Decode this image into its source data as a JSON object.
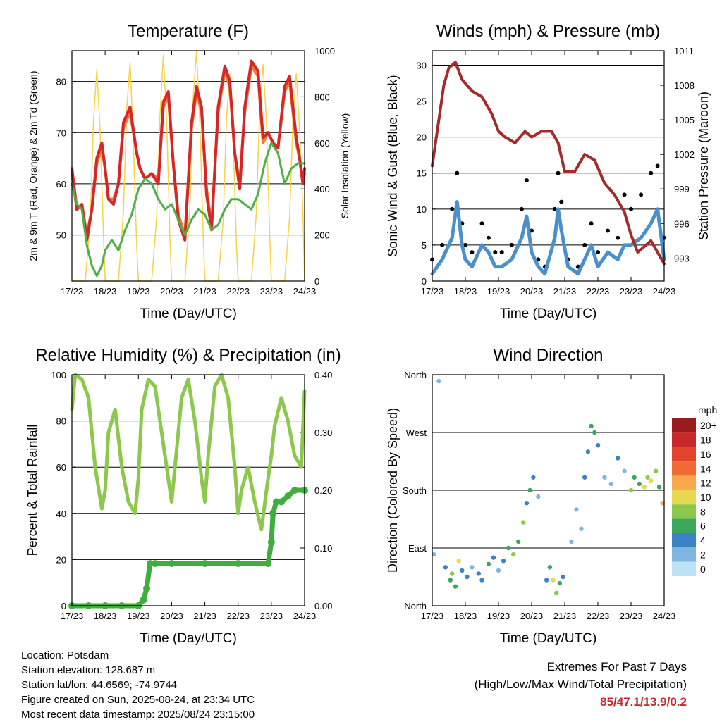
{
  "footer": {
    "location": "Location: Potsdam",
    "elevation": "Station elevation: 128.687 m",
    "latlon": "Station lat/lon: 44.6569; -74.9744",
    "created": "Figure created on Sun, 2025-08-24, at 23:34 UTC",
    "recent": "Most recent data timestamp: 2025/08/24 23:15:00"
  },
  "extremes": {
    "title": "Extremes For Past 7 Days",
    "subtitle": "(High/Low/Max Wind/Total Precipitation)",
    "values": "85/47.1/13.9/0.2",
    "color": "#c0282a"
  },
  "chart_data": [
    {
      "id": "temperature",
      "type": "line",
      "title": "Temperature (F)",
      "xlabel": "Time (Day/UTC)",
      "ylabel": "2m & 9m T (Red, Orange) & 2m Td (Green)",
      "y2label": "Solar Insolation (Yellow)",
      "x_ticks": [
        "17/23",
        "18/23",
        "19/23",
        "20/23",
        "21/23",
        "22/23",
        "23/23",
        "24/23"
      ],
      "xlim": [
        0,
        7
      ],
      "ylim": [
        41,
        86
      ],
      "y_ticks": [
        50,
        60,
        70,
        80
      ],
      "y2lim": [
        0,
        1000
      ],
      "y2_ticks": [
        0,
        200,
        400,
        600,
        800,
        1000
      ],
      "series": [
        {
          "name": "2m T",
          "color": "#d7262a",
          "x": [
            0,
            0.15,
            0.3,
            0.45,
            0.6,
            0.75,
            0.9,
            1.0,
            1.1,
            1.25,
            1.4,
            1.55,
            1.75,
            1.95,
            2.05,
            2.2,
            2.4,
            2.6,
            2.75,
            2.9,
            3.05,
            3.2,
            3.4,
            3.6,
            3.75,
            3.9,
            4.05,
            4.2,
            4.4,
            4.6,
            4.75,
            4.9,
            5.05,
            5.2,
            5.4,
            5.6,
            5.75,
            5.9,
            6.05,
            6.2,
            6.4,
            6.55,
            6.65,
            6.75,
            6.85,
            6.95,
            7.0
          ],
          "values": [
            63,
            55,
            56,
            49,
            55,
            65,
            68,
            63,
            57,
            56,
            60,
            72,
            75,
            66,
            63,
            61,
            62,
            60,
            76,
            78,
            64,
            53,
            49,
            72,
            79,
            75,
            58,
            51,
            75,
            83,
            80,
            66,
            59,
            75,
            84,
            82,
            69,
            70,
            68,
            67,
            79,
            81,
            75,
            69,
            65,
            60,
            63
          ]
        },
        {
          "name": "9m T",
          "color": "#f07a30",
          "x": [
            0,
            0.15,
            0.3,
            0.45,
            0.6,
            0.75,
            0.9,
            1.0,
            1.1,
            1.25,
            1.4,
            1.55,
            1.75,
            1.95,
            2.05,
            2.2,
            2.4,
            2.6,
            2.75,
            2.9,
            3.05,
            3.2,
            3.4,
            3.6,
            3.75,
            3.9,
            4.05,
            4.2,
            4.4,
            4.6,
            4.75,
            4.9,
            5.05,
            5.2,
            5.4,
            5.6,
            5.75,
            5.9,
            6.05,
            6.2,
            6.4,
            6.55,
            6.65,
            6.75,
            6.85,
            6.95,
            7.0
          ],
          "values": [
            62,
            55,
            56,
            50,
            55,
            64,
            67,
            63,
            57,
            57,
            60,
            71,
            74,
            66,
            63,
            61,
            62,
            61,
            75,
            77,
            64,
            54,
            50,
            71,
            78,
            74,
            59,
            52,
            74,
            82,
            79,
            66,
            60,
            74,
            83,
            81,
            68,
            70,
            68,
            67,
            78,
            80,
            74,
            68,
            65,
            60,
            62
          ]
        },
        {
          "name": "2m Td",
          "color": "#4db046",
          "x": [
            0,
            0.15,
            0.3,
            0.45,
            0.6,
            0.75,
            0.9,
            1.0,
            1.2,
            1.4,
            1.6,
            1.8,
            2.0,
            2.2,
            2.4,
            2.6,
            2.8,
            3.0,
            3.2,
            3.4,
            3.6,
            3.8,
            4.0,
            4.2,
            4.4,
            4.6,
            4.8,
            5.0,
            5.2,
            5.4,
            5.6,
            5.8,
            6.0,
            6.2,
            6.4,
            6.6,
            6.8,
            7.0
          ],
          "values": [
            60,
            56,
            55,
            48,
            44,
            42,
            44,
            47,
            49,
            47,
            51,
            54,
            59,
            61,
            60,
            57,
            55,
            56,
            53,
            50,
            53,
            55,
            54,
            51,
            52,
            55,
            57,
            57,
            56,
            55,
            58,
            64,
            68,
            66,
            60,
            63,
            64,
            64
          ]
        },
        {
          "name": "Solar Insolation",
          "color": "#f5d34a",
          "axis": "y2",
          "x": [
            0,
            0.4,
            0.55,
            0.65,
            0.75,
            0.85,
            0.95,
            1.0,
            1.4,
            1.55,
            1.65,
            1.75,
            1.85,
            1.95,
            2.0,
            2.4,
            2.55,
            2.65,
            2.75,
            2.85,
            2.95,
            3.0,
            3.4,
            3.55,
            3.65,
            3.75,
            3.85,
            3.95,
            4.0,
            4.4,
            4.55,
            4.65,
            4.75,
            4.85,
            4.95,
            5.0,
            5.4,
            5.55,
            5.65,
            5.75,
            5.85,
            5.95,
            6.0,
            6.4,
            6.55,
            6.65,
            6.75,
            6.85,
            6.95,
            7.0
          ],
          "values": [
            0,
            0,
            250,
            700,
            920,
            650,
            200,
            0,
            0,
            300,
            750,
            950,
            600,
            150,
            0,
            0,
            280,
            720,
            980,
            700,
            180,
            0,
            0,
            320,
            800,
            1000,
            680,
            200,
            0,
            0,
            260,
            700,
            900,
            620,
            160,
            0,
            0,
            300,
            760,
            940,
            700,
            200,
            0,
            0,
            280,
            700,
            900,
            650,
            300,
            0
          ]
        }
      ]
    },
    {
      "id": "winds",
      "type": "scatter",
      "title": "Winds (mph) & Pressure (mb)",
      "xlabel": "Time (Day/UTC)",
      "ylabel": "Sonic Wind & Gust (Blue, Black)",
      "y2label": "Station Pressure (Maroon)",
      "x_ticks": [
        "17/23",
        "18/23",
        "19/23",
        "20/23",
        "21/23",
        "22/23",
        "23/23",
        "24/23"
      ],
      "xlim": [
        0,
        7
      ],
      "ylim": [
        0,
        32
      ],
      "y_ticks": [
        0,
        5,
        10,
        15,
        20,
        25,
        30
      ],
      "y2lim": [
        991.0,
        1011.0
      ],
      "y2_ticks": [
        993,
        996,
        999,
        1002,
        1005,
        1008,
        1011
      ],
      "series": [
        {
          "name": "Sonic Wind",
          "color": "#4a90cc",
          "x": [
            0,
            0.3,
            0.6,
            0.75,
            0.9,
            1.0,
            1.2,
            1.5,
            1.7,
            1.9,
            2.1,
            2.4,
            2.7,
            2.85,
            3.0,
            3.2,
            3.4,
            3.7,
            3.8,
            3.9,
            4.1,
            4.4,
            4.6,
            4.8,
            5.0,
            5.3,
            5.6,
            5.8,
            6.0,
            6.3,
            6.6,
            6.8,
            7.0
          ],
          "values": [
            1,
            3,
            6,
            11,
            5,
            3,
            2,
            5,
            4,
            2,
            2,
            3,
            6,
            9,
            4,
            2,
            1,
            6,
            10,
            7,
            2,
            1,
            3,
            5,
            2,
            4,
            3,
            5,
            5,
            6,
            8,
            10,
            3
          ]
        },
        {
          "name": "Gust",
          "color": "#000000",
          "x": [
            0,
            0.3,
            0.6,
            0.75,
            0.9,
            1.0,
            1.2,
            1.5,
            1.7,
            1.9,
            2.1,
            2.4,
            2.7,
            2.85,
            3.0,
            3.2,
            3.4,
            3.7,
            3.8,
            3.9,
            4.1,
            4.4,
            4.6,
            4.8,
            5.0,
            5.3,
            5.6,
            5.8,
            6.0,
            6.3,
            6.6,
            6.8,
            7.0
          ],
          "values": [
            3,
            5,
            10,
            15,
            8,
            5,
            4,
            8,
            6,
            4,
            4,
            5,
            10,
            14,
            7,
            3,
            2,
            10,
            15,
            11,
            3,
            2,
            5,
            8,
            4,
            7,
            6,
            12,
            10,
            12,
            15,
            16,
            6
          ]
        },
        {
          "name": "Station Pressure",
          "color": "#a52a2a",
          "axis": "y2",
          "x": [
            0,
            0.2,
            0.35,
            0.5,
            0.7,
            0.9,
            1.2,
            1.5,
            1.8,
            2.0,
            2.2,
            2.5,
            2.8,
            3.0,
            3.3,
            3.6,
            3.8,
            4.0,
            4.3,
            4.6,
            4.9,
            5.2,
            5.5,
            5.8,
            6.0,
            6.2,
            6.4,
            6.6,
            6.8,
            7.0
          ],
          "values": [
            1001.0,
            1005.0,
            1008.0,
            1009.5,
            1010.0,
            1008.5,
            1007.5,
            1007.0,
            1005.5,
            1004.0,
            1003.5,
            1003.0,
            1004.0,
            1003.5,
            1004.0,
            1004.0,
            1003.0,
            1000.5,
            1000.5,
            1002.0,
            1001.5,
            999.5,
            998.5,
            997.0,
            995.0,
            993.5,
            994.0,
            994.5,
            993.5,
            992.5
          ]
        }
      ]
    },
    {
      "id": "humidity",
      "type": "line",
      "title": "Relative Humidity (%) & Precipitation (in)",
      "xlabel": "Time (Day/UTC)",
      "ylabel": "Percent & Total Rainfall",
      "x_ticks": [
        "17/23",
        "18/23",
        "19/23",
        "20/23",
        "21/23",
        "22/23",
        "23/23",
        "24/23"
      ],
      "xlim": [
        0,
        7
      ],
      "ylim": [
        0,
        100
      ],
      "y_ticks": [
        0,
        20,
        40,
        60,
        80,
        100
      ],
      "y2lim": [
        0,
        0.4
      ],
      "y2_ticks": [
        "0.00",
        "0.10",
        "0.20",
        "0.30",
        "0.40"
      ],
      "series": [
        {
          "name": "Relative Humidity",
          "color": "#8cc84b",
          "x": [
            0,
            0.1,
            0.3,
            0.5,
            0.7,
            0.9,
            1.0,
            1.1,
            1.3,
            1.5,
            1.7,
            1.9,
            2.0,
            2.1,
            2.3,
            2.5,
            2.7,
            2.9,
            3.0,
            3.1,
            3.3,
            3.5,
            3.7,
            3.9,
            4.0,
            4.1,
            4.3,
            4.5,
            4.7,
            4.9,
            5.0,
            5.1,
            5.3,
            5.5,
            5.7,
            5.9,
            6.0,
            6.1,
            6.3,
            6.5,
            6.7,
            6.9,
            7.0
          ],
          "values": [
            85,
            100,
            98,
            90,
            60,
            42,
            50,
            75,
            85,
            60,
            45,
            40,
            55,
            85,
            98,
            95,
            75,
            55,
            45,
            60,
            90,
            98,
            80,
            55,
            45,
            65,
            95,
            100,
            90,
            60,
            40,
            50,
            60,
            45,
            33,
            55,
            65,
            78,
            90,
            80,
            65,
            60,
            93
          ]
        },
        {
          "name": "Total Rainfall",
          "color": "#3fae3f",
          "axis": "y2",
          "x": [
            0,
            0.5,
            1.0,
            1.5,
            2.0,
            2.15,
            2.25,
            2.35,
            2.5,
            3.0,
            4.0,
            5.0,
            5.9,
            6.0,
            6.05,
            6.15,
            6.3,
            6.5,
            6.7,
            7.0
          ],
          "values": [
            0.0,
            0.0,
            0.0,
            0.0,
            0.0,
            0.01,
            0.03,
            0.073,
            0.073,
            0.073,
            0.073,
            0.073,
            0.073,
            0.11,
            0.16,
            0.18,
            0.18,
            0.19,
            0.2,
            0.2
          ]
        }
      ]
    },
    {
      "id": "winddir",
      "type": "scatter",
      "title": "Wind Direction",
      "xlabel": "Time (Day/UTC)",
      "ylabel": "Direction (Colored By Speed)",
      "x_ticks": [
        "17/23",
        "18/23",
        "19/23",
        "20/23",
        "21/23",
        "22/23",
        "23/23",
        "24/23"
      ],
      "xlim": [
        0,
        7
      ],
      "ylim": [
        0,
        360
      ],
      "y_ticks": [
        "North",
        "East",
        "South",
        "West",
        "North"
      ],
      "series": [
        {
          "name": "Wind Direction",
          "x": [
            0.05,
            0.2,
            0.4,
            0.55,
            0.6,
            0.7,
            0.8,
            0.9,
            1.05,
            1.2,
            1.4,
            1.5,
            1.7,
            1.85,
            2.0,
            2.15,
            2.3,
            2.45,
            2.6,
            2.75,
            2.85,
            2.95,
            3.05,
            3.2,
            3.45,
            3.55,
            3.65,
            3.75,
            3.85,
            3.95,
            4.2,
            4.35,
            4.5,
            4.6,
            4.7,
            4.8,
            4.9,
            5.0,
            5.2,
            5.4,
            5.6,
            5.8,
            6.0,
            6.1,
            6.25,
            6.4,
            6.5,
            6.6,
            6.75,
            6.85,
            6.95
          ],
          "values": [
            80,
            350,
            60,
            40,
            50,
            30,
            70,
            55,
            45,
            60,
            50,
            40,
            65,
            75,
            55,
            70,
            90,
            80,
            100,
            130,
            160,
            180,
            200,
            170,
            40,
            60,
            40,
            20,
            35,
            45,
            100,
            150,
            120,
            200,
            240,
            280,
            270,
            250,
            200,
            190,
            230,
            210,
            180,
            200,
            190,
            185,
            200,
            195,
            210,
            185,
            160
          ],
          "speeds": [
            2,
            1,
            3,
            5,
            8,
            6,
            10,
            4,
            3,
            2,
            4,
            3,
            5,
            4,
            2,
            3,
            5,
            7,
            6,
            8,
            4,
            5,
            3,
            2,
            4,
            6,
            9,
            7,
            5,
            3,
            1,
            1,
            2,
            3,
            4,
            6,
            5,
            3,
            2,
            1,
            4,
            2,
            8,
            5,
            6,
            10,
            7,
            9,
            8,
            6,
            12
          ]
        }
      ],
      "colorbar": {
        "unit": "mph",
        "labels": [
          "20+",
          "18",
          "16",
          "14",
          "12",
          "10",
          "8",
          "6",
          "4",
          "2",
          "0"
        ],
        "colors": [
          "#9b1a1c",
          "#c8272d",
          "#e2452c",
          "#f26b34",
          "#f8a84c",
          "#e6d94f",
          "#8cc84b",
          "#3aa75d",
          "#3c82c4",
          "#7fb6e0",
          "#bde2f5"
        ]
      }
    }
  ]
}
